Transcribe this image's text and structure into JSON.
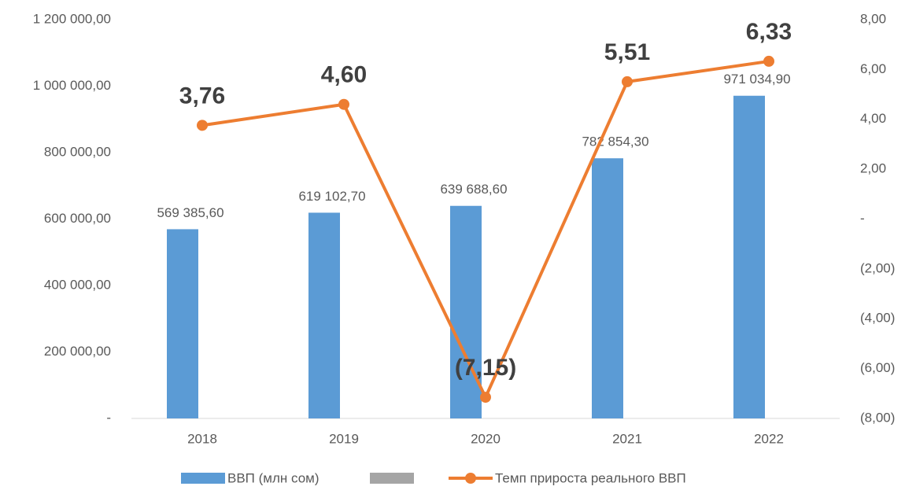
{
  "chart_data": {
    "type": "bar",
    "categories": [
      "2018",
      "2019",
      "2020",
      "2021",
      "2022"
    ],
    "series": [
      {
        "name": "ВВП (млн сом)",
        "type": "bar",
        "color": "#5b9bd5",
        "values": [
          569385.6,
          619102.7,
          639688.6,
          782854.3,
          971034.9
        ],
        "value_labels": [
          "569 385,60",
          "619 102,70",
          "639 688,60",
          "782 854,30",
          "971 034,90"
        ]
      },
      {
        "name": "Темп прироста реального ВВП",
        "type": "line",
        "axis": "y2",
        "color": "#ed7d31",
        "values": [
          3.76,
          4.6,
          -7.15,
          5.51,
          6.33
        ],
        "value_labels": [
          "3,76",
          "4,60",
          "(7,15)",
          "5,51",
          "6,33"
        ]
      }
    ],
    "ylim": [
      0,
      1200000
    ],
    "yticks": [
      {
        "value": 0,
        "label": "-"
      },
      {
        "value": 200000,
        "label": "200 000,00"
      },
      {
        "value": 400000,
        "label": "400 000,00"
      },
      {
        "value": 600000,
        "label": "600 000,00"
      },
      {
        "value": 800000,
        "label": "800 000,00"
      },
      {
        "value": 1000000,
        "label": "1 000 000,00"
      },
      {
        "value": 1200000,
        "label": "1 200 000,00"
      }
    ],
    "y2lim": [
      -8,
      8
    ],
    "y2ticks": [
      {
        "value": -8,
        "label": "(8,00)"
      },
      {
        "value": -6,
        "label": "(6,00)"
      },
      {
        "value": -4,
        "label": "(4,00)"
      },
      {
        "value": -2,
        "label": "(2,00)"
      },
      {
        "value": 0,
        "label": "-"
      },
      {
        "value": 2,
        "label": "2,00"
      },
      {
        "value": 4,
        "label": "4,00"
      },
      {
        "value": 6,
        "label": "6,00"
      },
      {
        "value": 8,
        "label": "8,00"
      }
    ],
    "grid": false
  }
}
